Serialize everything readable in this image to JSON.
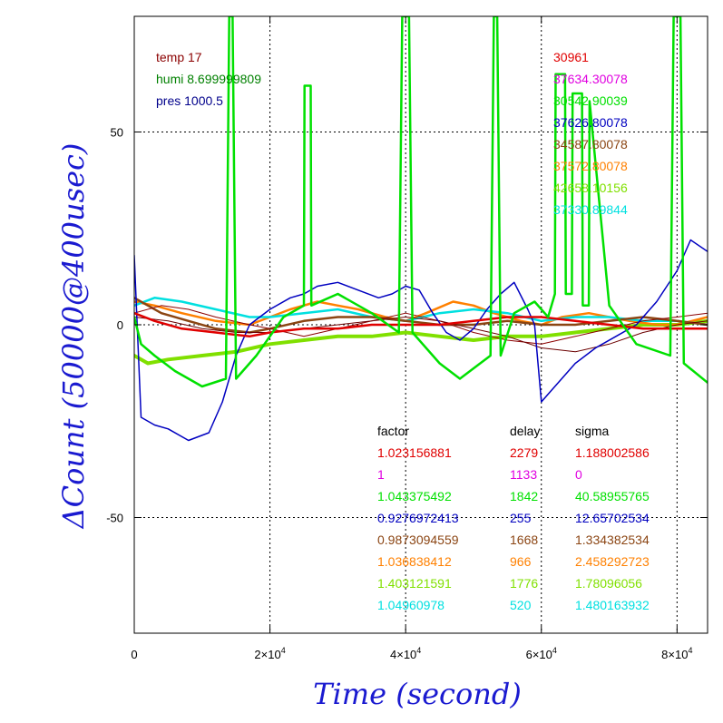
{
  "chart_data": {
    "type": "line",
    "xlabel": "Time (second)",
    "ylabel": "ΔCount (50000@400usec)",
    "xlim": [
      0,
      84500
    ],
    "ylim": [
      -80,
      80
    ],
    "x_ticks": [
      {
        "value": 0,
        "base": "0",
        "exp": ""
      },
      {
        "value": 20000,
        "base": "2×10",
        "exp": "4"
      },
      {
        "value": 40000,
        "base": "4×10",
        "exp": "4"
      },
      {
        "value": 60000,
        "base": "6×10",
        "exp": "4"
      },
      {
        "value": 80000,
        "base": "8×10",
        "exp": "4"
      }
    ],
    "y_ticks": [
      {
        "value": 50,
        "label": "50"
      },
      {
        "value": 0,
        "label": "0"
      },
      {
        "value": -50,
        "label": "-50"
      }
    ],
    "grid": true,
    "meta": [
      {
        "text": "temp 17",
        "color": "#8b0000"
      },
      {
        "text": "humi 8.699999809",
        "color": "#008000"
      },
      {
        "text": "pres 1000.5",
        "color": "#00008b"
      }
    ],
    "legend_values": [
      {
        "text": "30961",
        "color": "#e00000"
      },
      {
        "text": "37634.30078",
        "color": "#e000e0"
      },
      {
        "text": "30542.90039",
        "color": "#00e000"
      },
      {
        "text": "37626.80078",
        "color": "#0000c0"
      },
      {
        "text": "34587.80078",
        "color": "#8b4513"
      },
      {
        "text": "37572.80078",
        "color": "#ff8000"
      },
      {
        "text": "42658.10156",
        "color": "#80e000"
      },
      {
        "text": "37330.89844",
        "color": "#00e0e0"
      }
    ],
    "table_headers": [
      "factor",
      "delay",
      "sigma"
    ],
    "table_rows": [
      {
        "factor": "1.023156881",
        "delay": "2279",
        "sigma": "1.188002586",
        "color": "#e00000"
      },
      {
        "factor": "1",
        "delay": "1133",
        "sigma": "0",
        "color": "#e000e0"
      },
      {
        "factor": "1.043375492",
        "delay": "1842",
        "sigma": "40.58955765",
        "color": "#00e000"
      },
      {
        "factor": "0.9276972413",
        "delay": "255",
        "sigma": "12.65702534",
        "color": "#0000c0"
      },
      {
        "factor": "0.9873094559",
        "delay": "1668",
        "sigma": "1.334382534",
        "color": "#8b4513"
      },
      {
        "factor": "1.036838412",
        "delay": "966",
        "sigma": "2.458292723",
        "color": "#ff8000"
      },
      {
        "factor": "1.403121591",
        "delay": "1776",
        "sigma": "1.78096056",
        "color": "#80e000"
      },
      {
        "factor": "1.04960978",
        "delay": "520",
        "sigma": "1.480163932",
        "color": "#00e0e0"
      }
    ],
    "series": [
      {
        "color": "#80e000",
        "width": 4,
        "x": [
          0,
          2000,
          5000,
          10000,
          15000,
          20000,
          25000,
          30000,
          35000,
          40000,
          45000,
          50000,
          55000,
          60000,
          65000,
          70000,
          75000,
          80000,
          84500
        ],
        "y": [
          -8,
          -10,
          -9,
          -8,
          -7,
          -5,
          -4,
          -3,
          -3,
          -2,
          -3,
          -4,
          -3,
          -3,
          -2,
          -1,
          0,
          0,
          1
        ]
      },
      {
        "color": "#ff8000",
        "width": 2.5,
        "x": [
          0,
          3000,
          7000,
          12000,
          17000,
          20000,
          23000,
          27000,
          30000,
          33000,
          37000,
          40000,
          43000,
          47000,
          50000,
          53000,
          57000,
          60000,
          63000,
          67000,
          70000,
          73000,
          77000,
          80000,
          84500
        ],
        "y": [
          6,
          5,
          3,
          1,
          0,
          2,
          4,
          6,
          5,
          4,
          2,
          1,
          3,
          6,
          5,
          3,
          1,
          0,
          2,
          3,
          2,
          1,
          0,
          0,
          2
        ]
      },
      {
        "color": "#00e0e0",
        "width": 2.5,
        "x": [
          0,
          3000,
          7000,
          12000,
          17000,
          20000,
          25000,
          30000,
          35000,
          40000,
          45000,
          50000,
          55000,
          60000,
          65000,
          70000,
          75000,
          80000,
          84500
        ],
        "y": [
          5,
          7,
          6,
          4,
          2,
          2,
          3,
          4,
          2,
          1,
          3,
          4,
          3,
          1,
          2,
          2,
          1,
          1,
          0
        ]
      },
      {
        "color": "#8b4513",
        "width": 2.5,
        "x": [
          0,
          4000,
          8000,
          12000,
          17000,
          20000,
          25000,
          30000,
          35000,
          40000,
          45000,
          50000,
          55000,
          60000,
          65000,
          70000,
          75000,
          80000,
          84500
        ],
        "y": [
          7,
          3,
          1,
          -1,
          -2,
          -1,
          1,
          2,
          2,
          1,
          0,
          0,
          1,
          0,
          0,
          1,
          2,
          1,
          0
        ]
      },
      {
        "color": "#8b0000",
        "width": 1,
        "x": [
          0,
          4000,
          8000,
          12000,
          17000,
          20000,
          25000,
          30000,
          35000,
          40000,
          45000,
          50000,
          55000,
          60000,
          65000,
          70000,
          75000,
          80000,
          84500
        ],
        "y": [
          3,
          5,
          4,
          2,
          0,
          -1,
          -3,
          -1,
          1,
          3,
          1,
          -2,
          -4,
          -5,
          -3,
          -1,
          1,
          2,
          3
        ]
      },
      {
        "color": "#6b0000",
        "width": 1,
        "x": [
          0,
          5000,
          10000,
          15000,
          20000,
          25000,
          30000,
          35000,
          40000,
          45000,
          50000,
          55000,
          60000,
          65000,
          70000,
          75000,
          80000,
          84500
        ],
        "y": [
          2,
          1,
          -1,
          -2,
          -2,
          -1,
          0,
          1,
          2,
          1,
          -1,
          -3,
          -6,
          -7,
          -5,
          -2,
          0,
          1
        ]
      },
      {
        "color": "#0000c0",
        "width": 1.5,
        "x": [
          0,
          1000,
          3000,
          5000,
          8000,
          11000,
          13000,
          15000,
          17000,
          20000,
          23000,
          25000,
          27000,
          30000,
          33000,
          36000,
          38000,
          40000,
          42000,
          44000,
          46000,
          48000,
          50000,
          52000,
          54000,
          56000,
          58000,
          59000,
          60000,
          61000,
          63000,
          65000,
          68000,
          71000,
          74000,
          77000,
          80000,
          82000,
          84500
        ],
        "y": [
          18,
          -24,
          -26,
          -27,
          -30,
          -28,
          -20,
          -8,
          0,
          4,
          7,
          8,
          10,
          11,
          9,
          7,
          8,
          10,
          9,
          3,
          -2,
          -4,
          -1,
          4,
          8,
          11,
          4,
          0,
          -20,
          -18,
          -14,
          -10,
          -6,
          -3,
          0,
          6,
          14,
          22,
          19
        ]
      },
      {
        "color": "#e00000",
        "width": 2.5,
        "x": [
          0,
          3000,
          7000,
          12000,
          17000,
          20000,
          25000,
          30000,
          35000,
          40000,
          45000,
          50000,
          55000,
          60000,
          65000,
          70000,
          75000,
          80000,
          84500
        ],
        "y": [
          3,
          1,
          -1,
          -2,
          -3,
          -2,
          -1,
          -1,
          0,
          0,
          0,
          1,
          2,
          2,
          1,
          0,
          -1,
          -1,
          -1
        ]
      },
      {
        "color": "#00e000",
        "width": 2.5,
        "x": [
          0,
          1000,
          3000,
          6000,
          10000,
          13500,
          14000,
          14500,
          15000,
          18000,
          22000,
          25000,
          25100,
          26000,
          26100,
          30000,
          35000,
          39000,
          39500,
          40000,
          40500,
          41000,
          45000,
          48000,
          51000,
          52500,
          53000,
          53500,
          54000,
          56000,
          59000,
          61000,
          62000,
          62100,
          63500,
          63600,
          64500,
          64600,
          66000,
          66100,
          67000,
          67100,
          70000,
          74000,
          79000,
          79500,
          80000,
          80500,
          81000,
          84500
        ],
        "y": [
          2,
          -5,
          -8,
          -12,
          -16,
          -14,
          80,
          80,
          -14,
          -8,
          2,
          5,
          62,
          62,
          5,
          8,
          3,
          -2,
          80,
          80,
          80,
          -2,
          -10,
          -14,
          -10,
          -8,
          80,
          80,
          -8,
          3,
          6,
          2,
          8,
          65,
          65,
          8,
          8,
          60,
          60,
          5,
          5,
          58,
          5,
          -5,
          -8,
          80,
          80,
          80,
          -10,
          -15
        ]
      }
    ]
  }
}
